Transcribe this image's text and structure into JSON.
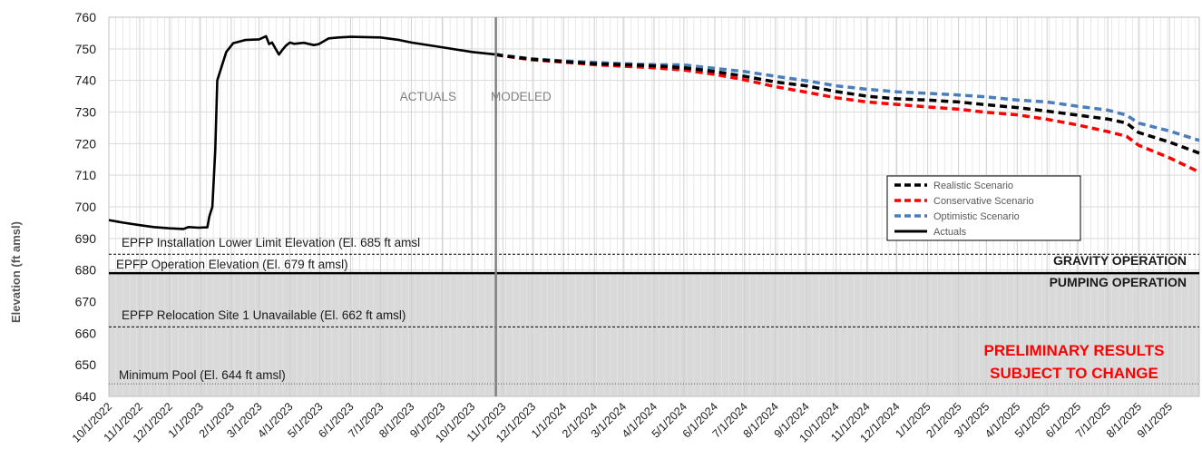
{
  "chart_data": {
    "type": "line",
    "title": "",
    "xlabel": "",
    "ylabel": "Elevation (ft amsl)",
    "ylim": [
      640,
      760
    ],
    "yticks": [
      640,
      650,
      660,
      670,
      680,
      690,
      700,
      710,
      720,
      730,
      740,
      750,
      760
    ],
    "xlim": [
      "2022-10-01",
      "2025-10-01"
    ],
    "xtick_labels": [
      "10/1/2022",
      "11/1/2022",
      "12/1/2022",
      "1/1/2023",
      "2/1/2023",
      "3/1/2023",
      "4/1/2023",
      "5/1/2023",
      "6/1/2023",
      "7/1/2023",
      "8/1/2023",
      "9/1/2023",
      "10/1/2023",
      "11/1/2023",
      "12/1/2023",
      "1/1/2024",
      "2/1/2024",
      "3/1/2024",
      "4/1/2024",
      "5/1/2024",
      "6/1/2024",
      "7/1/2024",
      "8/1/2024",
      "9/1/2024",
      "10/1/2024",
      "11/1/2024",
      "12/1/2024",
      "1/1/2025",
      "2/1/2025",
      "3/1/2025",
      "4/1/2025",
      "5/1/2025",
      "6/1/2025",
      "7/1/2025",
      "8/1/2025",
      "9/1/2025"
    ],
    "grid": true,
    "legend_position": "center-right",
    "series": [
      {
        "name": "Actuals",
        "color": "#000000",
        "style": "solid",
        "points": [
          [
            "2022-10-01",
            695.8
          ],
          [
            "2022-10-15",
            695.0
          ],
          [
            "2022-11-01",
            694.2
          ],
          [
            "2022-11-15",
            693.6
          ],
          [
            "2022-12-01",
            693.2
          ],
          [
            "2022-12-15",
            693.0
          ],
          [
            "2022-12-20",
            693.6
          ],
          [
            "2022-12-30",
            693.4
          ],
          [
            "2023-01-08",
            693.5
          ],
          [
            "2023-01-10",
            697.0
          ],
          [
            "2023-01-13",
            700.0
          ],
          [
            "2023-01-16",
            718.0
          ],
          [
            "2023-01-18",
            740.0
          ],
          [
            "2023-01-22",
            744.0
          ],
          [
            "2023-01-27",
            749.0
          ],
          [
            "2023-02-03",
            751.8
          ],
          [
            "2023-02-15",
            752.8
          ],
          [
            "2023-03-01",
            753.0
          ],
          [
            "2023-03-08",
            754.0
          ],
          [
            "2023-03-11",
            751.5
          ],
          [
            "2023-03-14",
            752.0
          ],
          [
            "2023-03-18",
            749.8
          ],
          [
            "2023-03-21",
            748.2
          ],
          [
            "2023-03-24",
            749.5
          ],
          [
            "2023-03-28",
            751.0
          ],
          [
            "2023-04-01",
            752.0
          ],
          [
            "2023-04-05",
            751.6
          ],
          [
            "2023-04-15",
            751.9
          ],
          [
            "2023-04-25",
            751.2
          ],
          [
            "2023-04-30",
            751.5
          ],
          [
            "2023-05-10",
            753.3
          ],
          [
            "2023-05-20",
            753.6
          ],
          [
            "2023-06-01",
            753.8
          ],
          [
            "2023-07-01",
            753.6
          ],
          [
            "2023-07-20",
            752.8
          ],
          [
            "2023-08-01",
            752.0
          ],
          [
            "2023-09-01",
            750.5
          ],
          [
            "2023-10-01",
            749.0
          ],
          [
            "2023-10-25",
            748.2
          ]
        ]
      },
      {
        "name": "Realistic Scenario",
        "color": "#000000",
        "style": "dashed",
        "points": [
          [
            "2023-10-25",
            748.2
          ],
          [
            "2023-11-01",
            747.8
          ],
          [
            "2023-12-01",
            746.7
          ],
          [
            "2024-01-01",
            746.0
          ],
          [
            "2024-02-01",
            745.3
          ],
          [
            "2024-03-01",
            745.0
          ],
          [
            "2024-04-01",
            744.6
          ],
          [
            "2024-05-01",
            744.0
          ],
          [
            "2024-06-01",
            742.8
          ],
          [
            "2024-07-01",
            741.3
          ],
          [
            "2024-08-01",
            739.5
          ],
          [
            "2024-09-01",
            738.3
          ],
          [
            "2024-10-01",
            736.5
          ],
          [
            "2024-11-01",
            735.0
          ],
          [
            "2024-12-01",
            734.2
          ],
          [
            "2025-01-01",
            733.8
          ],
          [
            "2025-02-01",
            733.2
          ],
          [
            "2025-03-01",
            732.3
          ],
          [
            "2025-04-01",
            731.4
          ],
          [
            "2025-05-01",
            730.3
          ],
          [
            "2025-06-01",
            729.0
          ],
          [
            "2025-07-01",
            727.8
          ],
          [
            "2025-07-20",
            726.5
          ],
          [
            "2025-08-01",
            723.5
          ],
          [
            "2025-09-01",
            720.5
          ],
          [
            "2025-10-01",
            717.0
          ]
        ]
      },
      {
        "name": "Conservative Scenario",
        "color": "#ff0000",
        "style": "dashed",
        "points": [
          [
            "2023-10-25",
            748.2
          ],
          [
            "2023-11-01",
            747.8
          ],
          [
            "2023-12-01",
            746.5
          ],
          [
            "2024-01-01",
            745.8
          ],
          [
            "2024-02-01",
            745.0
          ],
          [
            "2024-03-01",
            744.5
          ],
          [
            "2024-04-01",
            744.0
          ],
          [
            "2024-05-01",
            743.3
          ],
          [
            "2024-06-01",
            741.9
          ],
          [
            "2024-07-01",
            740.2
          ],
          [
            "2024-08-01",
            738.0
          ],
          [
            "2024-09-01",
            736.3
          ],
          [
            "2024-10-01",
            734.5
          ],
          [
            "2024-11-01",
            733.2
          ],
          [
            "2024-12-01",
            732.4
          ],
          [
            "2025-01-01",
            731.6
          ],
          [
            "2025-02-01",
            730.9
          ],
          [
            "2025-03-01",
            729.9
          ],
          [
            "2025-04-01",
            729.1
          ],
          [
            "2025-05-01",
            727.7
          ],
          [
            "2025-06-01",
            725.9
          ],
          [
            "2025-07-01",
            723.8
          ],
          [
            "2025-07-20",
            722.3
          ],
          [
            "2025-08-01",
            719.5
          ],
          [
            "2025-09-01",
            715.5
          ],
          [
            "2025-10-01",
            711.0
          ]
        ]
      },
      {
        "name": "Optimistic Scenario",
        "color": "#4a7ebb",
        "style": "dashed",
        "points": [
          [
            "2023-10-25",
            748.2
          ],
          [
            "2023-11-01",
            747.9
          ],
          [
            "2023-12-01",
            746.8
          ],
          [
            "2024-01-01",
            746.2
          ],
          [
            "2024-02-01",
            745.7
          ],
          [
            "2024-03-01",
            745.3
          ],
          [
            "2024-04-01",
            745.0
          ],
          [
            "2024-05-01",
            744.9
          ],
          [
            "2024-06-01",
            743.8
          ],
          [
            "2024-07-01",
            742.8
          ],
          [
            "2024-08-01",
            741.3
          ],
          [
            "2024-09-01",
            739.9
          ],
          [
            "2024-10-01",
            738.3
          ],
          [
            "2024-11-01",
            737.2
          ],
          [
            "2024-12-01",
            736.4
          ],
          [
            "2025-01-01",
            735.9
          ],
          [
            "2025-02-01",
            735.4
          ],
          [
            "2025-03-01",
            734.8
          ],
          [
            "2025-04-01",
            733.8
          ],
          [
            "2025-05-01",
            733.2
          ],
          [
            "2025-06-01",
            731.8
          ],
          [
            "2025-07-01",
            730.6
          ],
          [
            "2025-07-20",
            729.0
          ],
          [
            "2025-08-01",
            726.5
          ],
          [
            "2025-09-01",
            724.0
          ],
          [
            "2025-10-01",
            721.0
          ]
        ]
      }
    ],
    "reference_lines": [
      {
        "label": "EPFP Installation Lower Limit Elevation (El. 685 ft amsl",
        "y": 685,
        "style": "dashed"
      },
      {
        "label": "EPFP Operation Elevation (El. 679 ft amsl)",
        "y": 679,
        "style": "solid"
      },
      {
        "label": "EPFP Relocation Site 1 Unavailable  (El. 662 ft amsl)",
        "y": 662,
        "style": "dashed"
      },
      {
        "label": "Minimum  Pool (El. 644 ft amsl)",
        "y": 644,
        "style": "dotted"
      }
    ],
    "shaded_region": {
      "y_from": 640,
      "y_to": 679,
      "color": "#d9d9d9"
    },
    "region_labels": {
      "above": "GRAVITY OPERATION",
      "below": "PUMPING OPERATION"
    },
    "divider": {
      "date": "2023-10-25",
      "left_label": "ACTUALS",
      "right_label": "MODELED"
    },
    "annotation": {
      "lines": [
        "PRELIMINARY RESULTS",
        "SUBJECT TO CHANGE"
      ],
      "color": "#ff0000"
    }
  }
}
